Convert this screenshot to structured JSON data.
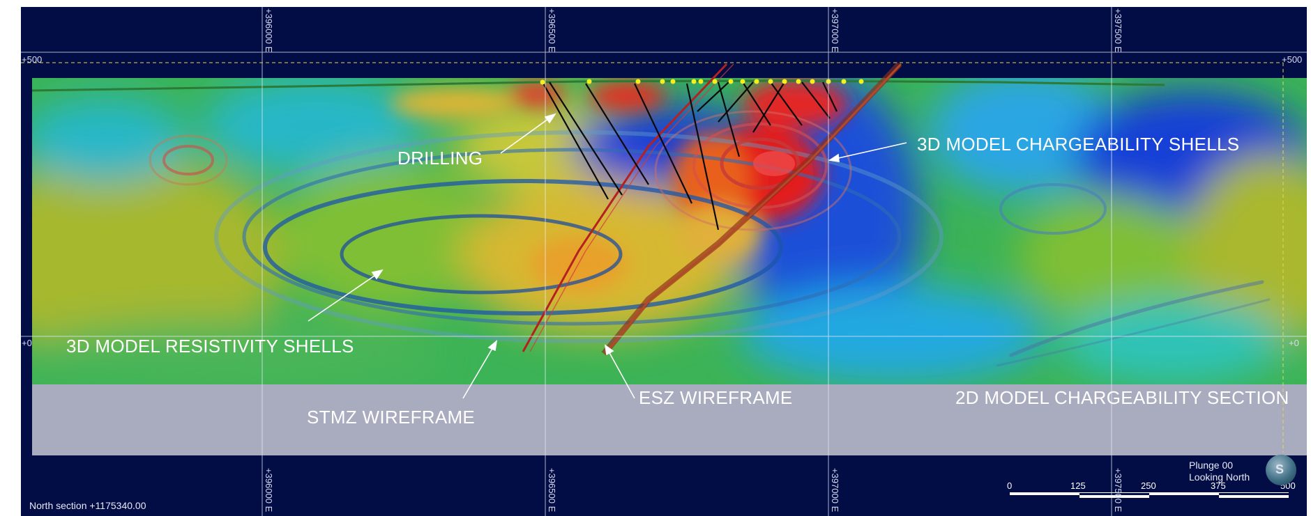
{
  "grid": {
    "easting_labels": [
      "+396000 E",
      "+396500 E",
      "+397000 E",
      "+397500 E"
    ],
    "elevation_labels": {
      "top": "+500",
      "middle": "+0"
    }
  },
  "annotations": {
    "drilling": "DRILLING",
    "chargeability_shells": "3D MODEL CHARGEABILITY SHELLS",
    "resistivity_shells": "3D MODEL RESISTIVITY SHELLS",
    "stmz": "STMZ WIREFRAME",
    "esz": "ESZ WIREFRAME",
    "section_2d": "2D MODEL CHARGEABILITY SECTION"
  },
  "view": {
    "section_name": "North section +1175340.00",
    "plunge": "Plunge 00",
    "looking": "Looking North"
  },
  "scale_bar": {
    "ticks": [
      "0",
      "125",
      "250",
      "375",
      "500"
    ]
  },
  "colors": {
    "background": "#020c45",
    "no_data": "#a9abbf",
    "high_chargeability": "#e01b1b",
    "low_chargeability": "#0a2bd4"
  },
  "compass_icon": "compass-ball-icon"
}
